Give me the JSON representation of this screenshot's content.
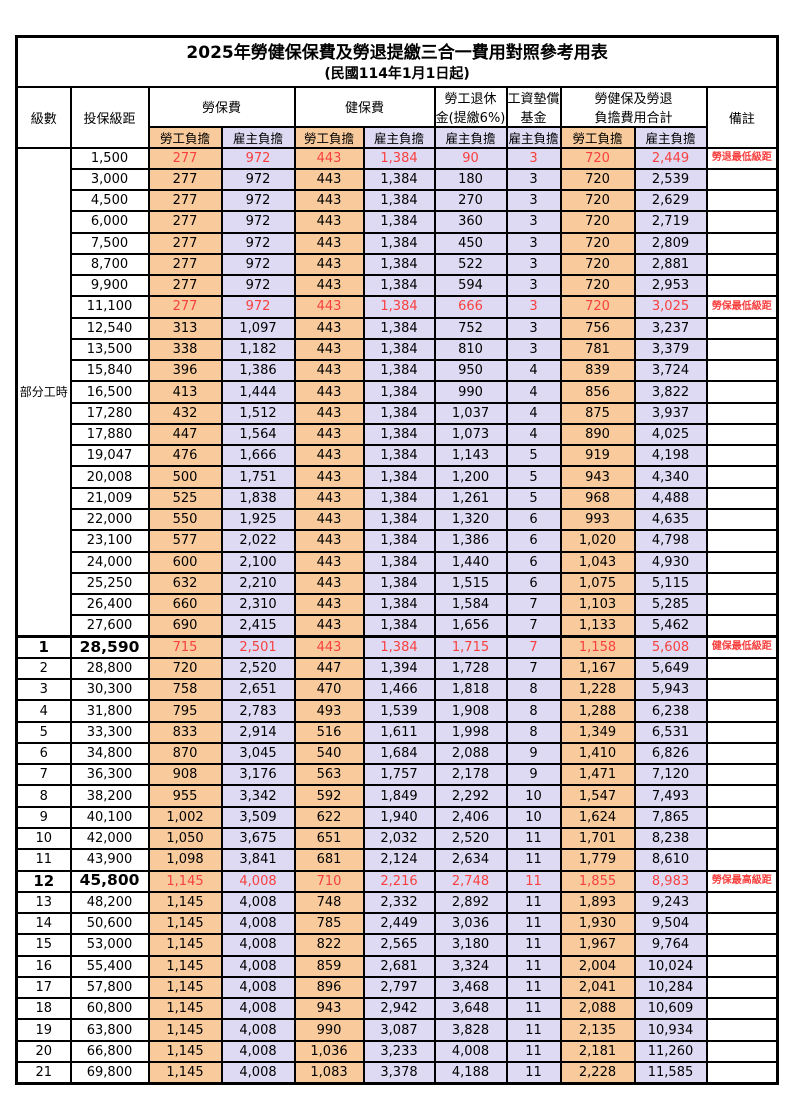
{
  "colors": {
    "employee_bg": "#F9CB9C",
    "employer_bg": "#DEDAF3",
    "red_text": "#F8403F"
  },
  "title": "2025年勞健保保費及勞退提繳三合一費用對照參考用表",
  "subtitle": "(民國114年1月1日起)",
  "header": {
    "level": "級數",
    "bracket": "投保級距",
    "labor_ins": "勞保費",
    "health_ins": "健保費",
    "pension_line1": "勞工退休",
    "pension_line2": "金(提繳6%)",
    "wage_fund_line1": "工資墊償",
    "wage_fund_line2": "基金",
    "total_line1": "勞健保及勞退",
    "total_line2": "負擔費用合計",
    "remark": "備註",
    "sub_headers": [
      "勞工負擔",
      "雇主負擔",
      "勞工負擔",
      "雇主負擔",
      "雇主負擔",
      "雇主負擔",
      "勞工負擔",
      "雇主負擔"
    ]
  },
  "part_time_label": "部分工時",
  "part_time_rowspan": 23,
  "rows": [
    {
      "level": "",
      "bracket": "1,500",
      "li_emp": "277",
      "li_er": "972",
      "hi_emp": "443",
      "hi_er": "1,384",
      "pension": "90",
      "fund": "3",
      "tot_emp": "720",
      "tot_er": "2,449",
      "remark": "勞退最低級距",
      "red": true,
      "bold": false
    },
    {
      "level": "",
      "bracket": "3,000",
      "li_emp": "277",
      "li_er": "972",
      "hi_emp": "443",
      "hi_er": "1,384",
      "pension": "180",
      "fund": "3",
      "tot_emp": "720",
      "tot_er": "2,539",
      "remark": "",
      "red": false,
      "bold": false
    },
    {
      "level": "",
      "bracket": "4,500",
      "li_emp": "277",
      "li_er": "972",
      "hi_emp": "443",
      "hi_er": "1,384",
      "pension": "270",
      "fund": "3",
      "tot_emp": "720",
      "tot_er": "2,629",
      "remark": "",
      "red": false,
      "bold": false
    },
    {
      "level": "",
      "bracket": "6,000",
      "li_emp": "277",
      "li_er": "972",
      "hi_emp": "443",
      "hi_er": "1,384",
      "pension": "360",
      "fund": "3",
      "tot_emp": "720",
      "tot_er": "2,719",
      "remark": "",
      "red": false,
      "bold": false
    },
    {
      "level": "",
      "bracket": "7,500",
      "li_emp": "277",
      "li_er": "972",
      "hi_emp": "443",
      "hi_er": "1,384",
      "pension": "450",
      "fund": "3",
      "tot_emp": "720",
      "tot_er": "2,809",
      "remark": "",
      "red": false,
      "bold": false
    },
    {
      "level": "",
      "bracket": "8,700",
      "li_emp": "277",
      "li_er": "972",
      "hi_emp": "443",
      "hi_er": "1,384",
      "pension": "522",
      "fund": "3",
      "tot_emp": "720",
      "tot_er": "2,881",
      "remark": "",
      "red": false,
      "bold": false
    },
    {
      "level": "",
      "bracket": "9,900",
      "li_emp": "277",
      "li_er": "972",
      "hi_emp": "443",
      "hi_er": "1,384",
      "pension": "594",
      "fund": "3",
      "tot_emp": "720",
      "tot_er": "2,953",
      "remark": "",
      "red": false,
      "bold": false
    },
    {
      "level": "",
      "bracket": "11,100",
      "li_emp": "277",
      "li_er": "972",
      "hi_emp": "443",
      "hi_er": "1,384",
      "pension": "666",
      "fund": "3",
      "tot_emp": "720",
      "tot_er": "3,025",
      "remark": "勞保最低級距",
      "red": true,
      "bold": false
    },
    {
      "level": "",
      "bracket": "12,540",
      "li_emp": "313",
      "li_er": "1,097",
      "hi_emp": "443",
      "hi_er": "1,384",
      "pension": "752",
      "fund": "3",
      "tot_emp": "756",
      "tot_er": "3,237",
      "remark": "",
      "red": false,
      "bold": false
    },
    {
      "level": "",
      "bracket": "13,500",
      "li_emp": "338",
      "li_er": "1,182",
      "hi_emp": "443",
      "hi_er": "1,384",
      "pension": "810",
      "fund": "3",
      "tot_emp": "781",
      "tot_er": "3,379",
      "remark": "",
      "red": false,
      "bold": false
    },
    {
      "level": "",
      "bracket": "15,840",
      "li_emp": "396",
      "li_er": "1,386",
      "hi_emp": "443",
      "hi_er": "1,384",
      "pension": "950",
      "fund": "4",
      "tot_emp": "839",
      "tot_er": "3,724",
      "remark": "",
      "red": false,
      "bold": false
    },
    {
      "level": "",
      "bracket": "16,500",
      "li_emp": "413",
      "li_er": "1,444",
      "hi_emp": "443",
      "hi_er": "1,384",
      "pension": "990",
      "fund": "4",
      "tot_emp": "856",
      "tot_er": "3,822",
      "remark": "",
      "red": false,
      "bold": false
    },
    {
      "level": "",
      "bracket": "17,280",
      "li_emp": "432",
      "li_er": "1,512",
      "hi_emp": "443",
      "hi_er": "1,384",
      "pension": "1,037",
      "fund": "4",
      "tot_emp": "875",
      "tot_er": "3,937",
      "remark": "",
      "red": false,
      "bold": false
    },
    {
      "level": "",
      "bracket": "17,880",
      "li_emp": "447",
      "li_er": "1,564",
      "hi_emp": "443",
      "hi_er": "1,384",
      "pension": "1,073",
      "fund": "4",
      "tot_emp": "890",
      "tot_er": "4,025",
      "remark": "",
      "red": false,
      "bold": false
    },
    {
      "level": "",
      "bracket": "19,047",
      "li_emp": "476",
      "li_er": "1,666",
      "hi_emp": "443",
      "hi_er": "1,384",
      "pension": "1,143",
      "fund": "5",
      "tot_emp": "919",
      "tot_er": "4,198",
      "remark": "",
      "red": false,
      "bold": false
    },
    {
      "level": "",
      "bracket": "20,008",
      "li_emp": "500",
      "li_er": "1,751",
      "hi_emp": "443",
      "hi_er": "1,384",
      "pension": "1,200",
      "fund": "5",
      "tot_emp": "943",
      "tot_er": "4,340",
      "remark": "",
      "red": false,
      "bold": false
    },
    {
      "level": "",
      "bracket": "21,009",
      "li_emp": "525",
      "li_er": "1,838",
      "hi_emp": "443",
      "hi_er": "1,384",
      "pension": "1,261",
      "fund": "5",
      "tot_emp": "968",
      "tot_er": "4,488",
      "remark": "",
      "red": false,
      "bold": false
    },
    {
      "level": "",
      "bracket": "22,000",
      "li_emp": "550",
      "li_er": "1,925",
      "hi_emp": "443",
      "hi_er": "1,384",
      "pension": "1,320",
      "fund": "6",
      "tot_emp": "993",
      "tot_er": "4,635",
      "remark": "",
      "red": false,
      "bold": false
    },
    {
      "level": "",
      "bracket": "23,100",
      "li_emp": "577",
      "li_er": "2,022",
      "hi_emp": "443",
      "hi_er": "1,384",
      "pension": "1,386",
      "fund": "6",
      "tot_emp": "1,020",
      "tot_er": "4,798",
      "remark": "",
      "red": false,
      "bold": false
    },
    {
      "level": "",
      "bracket": "24,000",
      "li_emp": "600",
      "li_er": "2,100",
      "hi_emp": "443",
      "hi_er": "1,384",
      "pension": "1,440",
      "fund": "6",
      "tot_emp": "1,043",
      "tot_er": "4,930",
      "remark": "",
      "red": false,
      "bold": false
    },
    {
      "level": "",
      "bracket": "25,250",
      "li_emp": "632",
      "li_er": "2,210",
      "hi_emp": "443",
      "hi_er": "1,384",
      "pension": "1,515",
      "fund": "6",
      "tot_emp": "1,075",
      "tot_er": "5,115",
      "remark": "",
      "red": false,
      "bold": false
    },
    {
      "level": "",
      "bracket": "26,400",
      "li_emp": "660",
      "li_er": "2,310",
      "hi_emp": "443",
      "hi_er": "1,384",
      "pension": "1,584",
      "fund": "7",
      "tot_emp": "1,103",
      "tot_er": "5,285",
      "remark": "",
      "red": false,
      "bold": false
    },
    {
      "level": "",
      "bracket": "27,600",
      "li_emp": "690",
      "li_er": "2,415",
      "hi_emp": "443",
      "hi_er": "1,384",
      "pension": "1,656",
      "fund": "7",
      "tot_emp": "1,133",
      "tot_er": "5,462",
      "remark": "",
      "red": false,
      "bold": false
    },
    {
      "level": "1",
      "bracket": "28,590",
      "li_emp": "715",
      "li_er": "2,501",
      "hi_emp": "443",
      "hi_er": "1,384",
      "pension": "1,715",
      "fund": "7",
      "tot_emp": "1,158",
      "tot_er": "5,608",
      "remark": "健保最低級距",
      "red": true,
      "bold": true,
      "sep": true
    },
    {
      "level": "2",
      "bracket": "28,800",
      "li_emp": "720",
      "li_er": "2,520",
      "hi_emp": "447",
      "hi_er": "1,394",
      "pension": "1,728",
      "fund": "7",
      "tot_emp": "1,167",
      "tot_er": "5,649",
      "remark": "",
      "red": false,
      "bold": false
    },
    {
      "level": "3",
      "bracket": "30,300",
      "li_emp": "758",
      "li_er": "2,651",
      "hi_emp": "470",
      "hi_er": "1,466",
      "pension": "1,818",
      "fund": "8",
      "tot_emp": "1,228",
      "tot_er": "5,943",
      "remark": "",
      "red": false,
      "bold": false
    },
    {
      "level": "4",
      "bracket": "31,800",
      "li_emp": "795",
      "li_er": "2,783",
      "hi_emp": "493",
      "hi_er": "1,539",
      "pension": "1,908",
      "fund": "8",
      "tot_emp": "1,288",
      "tot_er": "6,238",
      "remark": "",
      "red": false,
      "bold": false
    },
    {
      "level": "5",
      "bracket": "33,300",
      "li_emp": "833",
      "li_er": "2,914",
      "hi_emp": "516",
      "hi_er": "1,611",
      "pension": "1,998",
      "fund": "8",
      "tot_emp": "1,349",
      "tot_er": "6,531",
      "remark": "",
      "red": false,
      "bold": false
    },
    {
      "level": "6",
      "bracket": "34,800",
      "li_emp": "870",
      "li_er": "3,045",
      "hi_emp": "540",
      "hi_er": "1,684",
      "pension": "2,088",
      "fund": "9",
      "tot_emp": "1,410",
      "tot_er": "6,826",
      "remark": "",
      "red": false,
      "bold": false
    },
    {
      "level": "7",
      "bracket": "36,300",
      "li_emp": "908",
      "li_er": "3,176",
      "hi_emp": "563",
      "hi_er": "1,757",
      "pension": "2,178",
      "fund": "9",
      "tot_emp": "1,471",
      "tot_er": "7,120",
      "remark": "",
      "red": false,
      "bold": false
    },
    {
      "level": "8",
      "bracket": "38,200",
      "li_emp": "955",
      "li_er": "3,342",
      "hi_emp": "592",
      "hi_er": "1,849",
      "pension": "2,292",
      "fund": "10",
      "tot_emp": "1,547",
      "tot_er": "7,493",
      "remark": "",
      "red": false,
      "bold": false
    },
    {
      "level": "9",
      "bracket": "40,100",
      "li_emp": "1,002",
      "li_er": "3,509",
      "hi_emp": "622",
      "hi_er": "1,940",
      "pension": "2,406",
      "fund": "10",
      "tot_emp": "1,624",
      "tot_er": "7,865",
      "remark": "",
      "red": false,
      "bold": false
    },
    {
      "level": "10",
      "bracket": "42,000",
      "li_emp": "1,050",
      "li_er": "3,675",
      "hi_emp": "651",
      "hi_er": "2,032",
      "pension": "2,520",
      "fund": "11",
      "tot_emp": "1,701",
      "tot_er": "8,238",
      "remark": "",
      "red": false,
      "bold": false
    },
    {
      "level": "11",
      "bracket": "43,900",
      "li_emp": "1,098",
      "li_er": "3,841",
      "hi_emp": "681",
      "hi_er": "2,124",
      "pension": "2,634",
      "fund": "11",
      "tot_emp": "1,779",
      "tot_er": "8,610",
      "remark": "",
      "red": false,
      "bold": false
    },
    {
      "level": "12",
      "bracket": "45,800",
      "li_emp": "1,145",
      "li_er": "4,008",
      "hi_emp": "710",
      "hi_er": "2,216",
      "pension": "2,748",
      "fund": "11",
      "tot_emp": "1,855",
      "tot_er": "8,983",
      "remark": "勞保最高級距",
      "red": true,
      "bold": true
    },
    {
      "level": "13",
      "bracket": "48,200",
      "li_emp": "1,145",
      "li_er": "4,008",
      "hi_emp": "748",
      "hi_er": "2,332",
      "pension": "2,892",
      "fund": "11",
      "tot_emp": "1,893",
      "tot_er": "9,243",
      "remark": "",
      "red": false,
      "bold": false
    },
    {
      "level": "14",
      "bracket": "50,600",
      "li_emp": "1,145",
      "li_er": "4,008",
      "hi_emp": "785",
      "hi_er": "2,449",
      "pension": "3,036",
      "fund": "11",
      "tot_emp": "1,930",
      "tot_er": "9,504",
      "remark": "",
      "red": false,
      "bold": false
    },
    {
      "level": "15",
      "bracket": "53,000",
      "li_emp": "1,145",
      "li_er": "4,008",
      "hi_emp": "822",
      "hi_er": "2,565",
      "pension": "3,180",
      "fund": "11",
      "tot_emp": "1,967",
      "tot_er": "9,764",
      "remark": "",
      "red": false,
      "bold": false
    },
    {
      "level": "16",
      "bracket": "55,400",
      "li_emp": "1,145",
      "li_er": "4,008",
      "hi_emp": "859",
      "hi_er": "2,681",
      "pension": "3,324",
      "fund": "11",
      "tot_emp": "2,004",
      "tot_er": "10,024",
      "remark": "",
      "red": false,
      "bold": false
    },
    {
      "level": "17",
      "bracket": "57,800",
      "li_emp": "1,145",
      "li_er": "4,008",
      "hi_emp": "896",
      "hi_er": "2,797",
      "pension": "3,468",
      "fund": "11",
      "tot_emp": "2,041",
      "tot_er": "10,284",
      "remark": "",
      "red": false,
      "bold": false
    },
    {
      "level": "18",
      "bracket": "60,800",
      "li_emp": "1,145",
      "li_er": "4,008",
      "hi_emp": "943",
      "hi_er": "2,942",
      "pension": "3,648",
      "fund": "11",
      "tot_emp": "2,088",
      "tot_er": "10,609",
      "remark": "",
      "red": false,
      "bold": false
    },
    {
      "level": "19",
      "bracket": "63,800",
      "li_emp": "1,145",
      "li_er": "4,008",
      "hi_emp": "990",
      "hi_er": "3,087",
      "pension": "3,828",
      "fund": "11",
      "tot_emp": "2,135",
      "tot_er": "10,934",
      "remark": "",
      "red": false,
      "bold": false
    },
    {
      "level": "20",
      "bracket": "66,800",
      "li_emp": "1,145",
      "li_er": "4,008",
      "hi_emp": "1,036",
      "hi_er": "3,233",
      "pension": "4,008",
      "fund": "11",
      "tot_emp": "2,181",
      "tot_er": "11,260",
      "remark": "",
      "red": false,
      "bold": false
    },
    {
      "level": "21",
      "bracket": "69,800",
      "li_emp": "1,145",
      "li_er": "4,008",
      "hi_emp": "1,083",
      "hi_er": "3,378",
      "pension": "4,188",
      "fund": "11",
      "tot_emp": "2,228",
      "tot_er": "11,585",
      "remark": "",
      "red": false,
      "bold": false
    }
  ]
}
